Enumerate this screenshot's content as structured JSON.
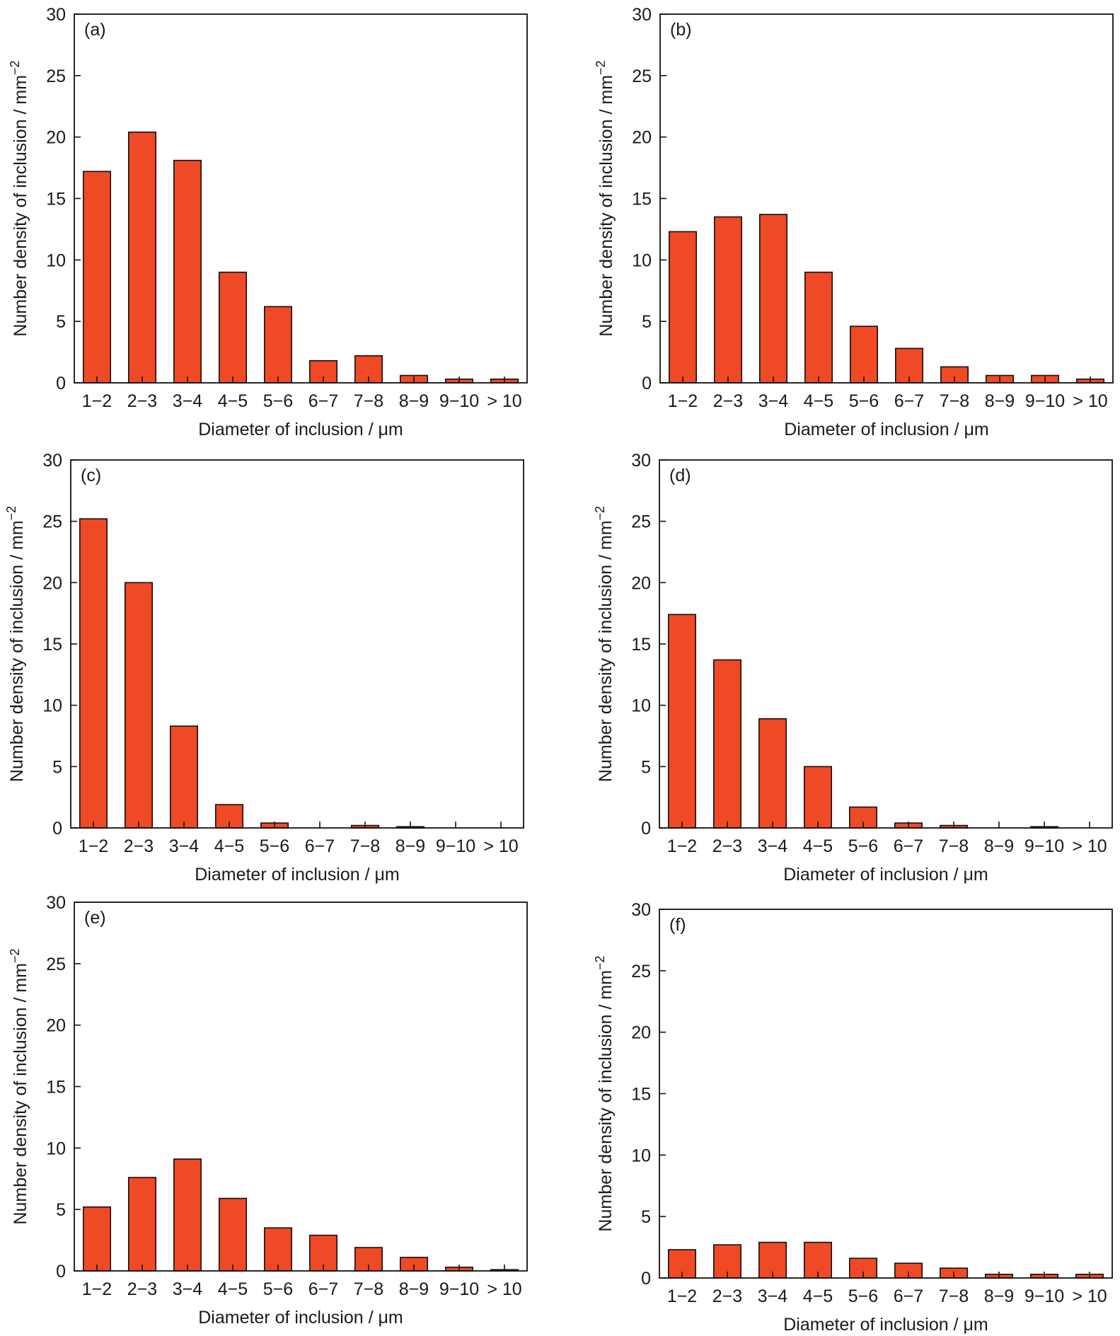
{
  "chart_data": [
    {
      "type": "bar",
      "panel_label": "(a)",
      "categories": [
        "1−2",
        "2−3",
        "3−4",
        "4−5",
        "5−6",
        "6−7",
        "7−8",
        "8−9",
        "9−10",
        "> 10"
      ],
      "values": [
        17.2,
        20.4,
        18.1,
        9.0,
        6.2,
        1.8,
        2.2,
        0.6,
        0.3,
        0.3
      ],
      "xlabel": "Diameter of inclusion / μm",
      "ylabel": "Number density of inclusion / mm",
      "ylabel_sup": "−2",
      "ylim": [
        0,
        30
      ],
      "yticks": [
        0,
        5,
        10,
        15,
        20,
        25,
        30
      ],
      "grid": false,
      "bar_color": "#ef4a25"
    },
    {
      "type": "bar",
      "panel_label": "(b)",
      "categories": [
        "1−2",
        "2−3",
        "3−4",
        "4−5",
        "5−6",
        "6−7",
        "7−8",
        "8−9",
        "9−10",
        "> 10"
      ],
      "values": [
        12.3,
        13.5,
        13.7,
        9.0,
        4.6,
        2.8,
        1.3,
        0.6,
        0.6,
        0.3
      ],
      "xlabel": "Diameter of inclusion / μm",
      "ylabel": "Number density of inclusion / mm",
      "ylabel_sup": "−2",
      "ylim": [
        0,
        30
      ],
      "yticks": [
        0,
        5,
        10,
        15,
        20,
        25,
        30
      ],
      "grid": false,
      "bar_color": "#ef4a25"
    },
    {
      "type": "bar",
      "panel_label": "(c)",
      "categories": [
        "1−2",
        "2−3",
        "3−4",
        "4−5",
        "5−6",
        "6−7",
        "7−8",
        "8−9",
        "9−10",
        "> 10"
      ],
      "values": [
        25.2,
        20.0,
        8.3,
        1.9,
        0.4,
        0.0,
        0.2,
        0.1,
        0.0,
        0.0
      ],
      "xlabel": "Diameter of inclusion / μm",
      "ylabel": "Number density of inclusion / mm",
      "ylabel_sup": "−2",
      "ylim": [
        0,
        30
      ],
      "yticks": [
        0,
        5,
        10,
        15,
        20,
        25,
        30
      ],
      "grid": false,
      "bar_color": "#ef4a25"
    },
    {
      "type": "bar",
      "panel_label": "(d)",
      "categories": [
        "1−2",
        "2−3",
        "3−4",
        "4−5",
        "5−6",
        "6−7",
        "7−8",
        "8−9",
        "9−10",
        "> 10"
      ],
      "values": [
        17.4,
        13.7,
        8.9,
        5.0,
        1.7,
        0.4,
        0.2,
        0.0,
        0.1,
        0.0
      ],
      "xlabel": "Diameter of inclusion / μm",
      "ylabel": "Number density of inclusion / mm",
      "ylabel_sup": "−2",
      "ylim": [
        0,
        30
      ],
      "yticks": [
        0,
        5,
        10,
        15,
        20,
        25,
        30
      ],
      "grid": false,
      "bar_color": "#ef4a25"
    },
    {
      "type": "bar",
      "panel_label": "(e)",
      "categories": [
        "1−2",
        "2−3",
        "3−4",
        "4−5",
        "5−6",
        "6−7",
        "7−8",
        "8−9",
        "9−10",
        "> 10"
      ],
      "values": [
        5.2,
        7.6,
        9.1,
        5.9,
        3.5,
        2.9,
        1.9,
        1.1,
        0.3,
        0.1
      ],
      "xlabel": "Diameter of inclusion / μm",
      "ylabel": "Number density of inclusion / mm",
      "ylabel_sup": "−2",
      "ylim": [
        0,
        30
      ],
      "yticks": [
        0,
        5,
        10,
        15,
        20,
        25,
        30
      ],
      "grid": false,
      "bar_color": "#ef4a25"
    },
    {
      "type": "bar",
      "panel_label": "(f)",
      "categories": [
        "1−2",
        "2−3",
        "3−4",
        "4−5",
        "5−6",
        "6−7",
        "7−8",
        "8−9",
        "9−10",
        "> 10"
      ],
      "values": [
        2.3,
        2.7,
        2.9,
        2.9,
        1.6,
        1.2,
        0.8,
        0.3,
        0.3,
        0.3
      ],
      "xlabel": "Diameter of inclusion / μm",
      "ylabel": "Number density of inclusion / mm",
      "ylabel_sup": "−2",
      "ylim": [
        0,
        30
      ],
      "yticks": [
        0,
        5,
        10,
        15,
        20,
        25,
        30
      ],
      "grid": false,
      "bar_color": "#ef4a25"
    }
  ]
}
